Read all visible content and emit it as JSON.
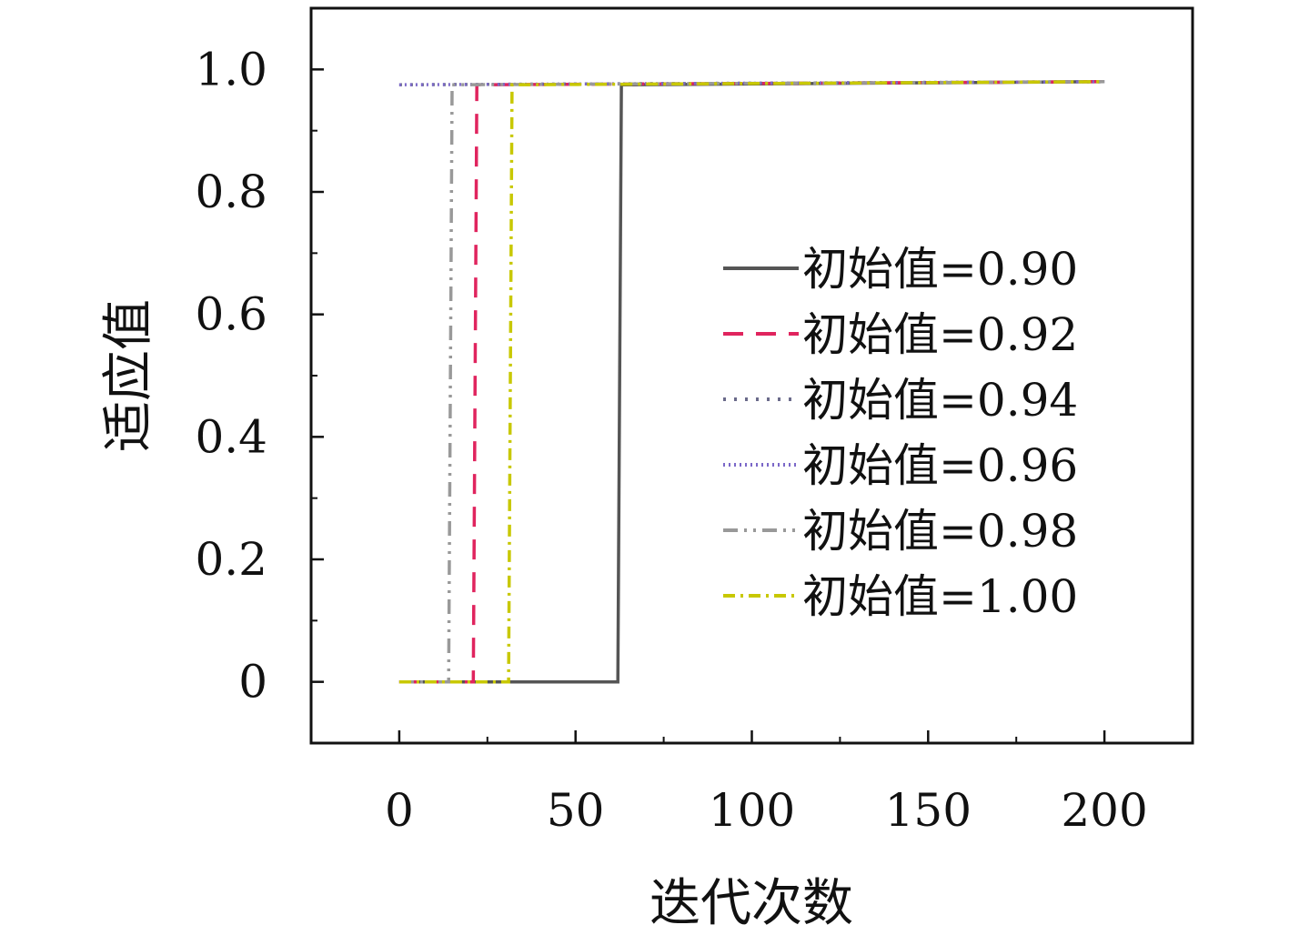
{
  "chart_data": {
    "type": "line",
    "title": "",
    "xlabel": "迭代次数",
    "ylabel": "适应值",
    "xlim": [
      -25,
      225
    ],
    "ylim": [
      -0.1,
      1.1
    ],
    "xticks": [
      0,
      50,
      100,
      150,
      200
    ],
    "yticks": [
      0,
      0.2,
      0.4,
      0.6,
      0.8,
      1.0
    ],
    "xtick_labels": [
      "0",
      "50",
      "100",
      "150",
      "200"
    ],
    "ytick_labels": [
      "0",
      "0.2",
      "0.4",
      "0.6",
      "0.8",
      "1.0"
    ],
    "legend_position": "right",
    "grid": false,
    "series": [
      {
        "name": "初始值=0.90",
        "color": "#555555",
        "dash": "solid",
        "x": [
          0,
          62,
          63,
          200
        ],
        "y": [
          0,
          0,
          0.975,
          0.98
        ]
      },
      {
        "name": "初始值=0.92",
        "color": "#e0245e",
        "dash": "dash",
        "x": [
          0,
          21,
          22,
          200
        ],
        "y": [
          0,
          0,
          0.975,
          0.98
        ]
      },
      {
        "name": "初始值=0.94",
        "color": "#6a6a8a",
        "dash": "dot",
        "x": [
          0,
          200
        ],
        "y": [
          0.975,
          0.98
        ]
      },
      {
        "name": "初始值=0.96",
        "color": "#7b68c8",
        "dash": "fine-dot",
        "x": [
          0,
          200
        ],
        "y": [
          0.975,
          0.98
        ]
      },
      {
        "name": "初始值=0.98",
        "color": "#999999",
        "dash": "dash-dot-dot",
        "x": [
          0,
          14,
          15,
          200
        ],
        "y": [
          0,
          0,
          0.975,
          0.98
        ]
      },
      {
        "name": "初始值=1.00",
        "color": "#c8c800",
        "dash": "dash-dot",
        "x": [
          0,
          31,
          32,
          200
        ],
        "y": [
          0,
          0,
          0.975,
          0.98
        ]
      }
    ]
  }
}
